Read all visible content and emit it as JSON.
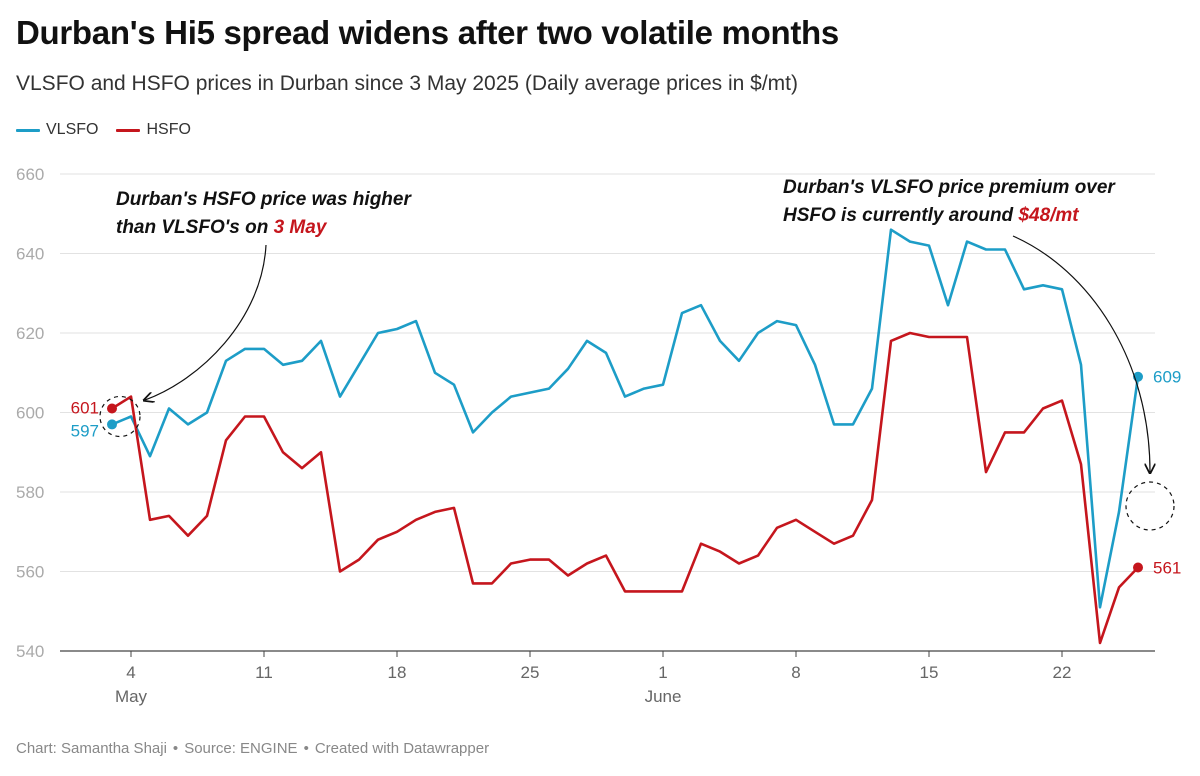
{
  "title": "Durban's Hi5 spread widens after two volatile months",
  "subtitle": "VLSFO and HSFO prices in Durban since 3 May 2025 (Daily average prices in $/mt)",
  "legend": [
    {
      "name": "VLSFO",
      "color": "#1d9dc7"
    },
    {
      "name": "HSFO",
      "color": "#c5161d"
    }
  ],
  "footer": {
    "chart_by": "Chart: Samantha Shaji",
    "source": "Source: ENGINE",
    "created": "Created with Datawrapper",
    "separator": "•"
  },
  "chart_data": {
    "type": "line",
    "title": "Durban's Hi5 spread widens after two volatile months",
    "ylim": [
      540,
      660
    ],
    "y_ticks": [
      540,
      560,
      580,
      600,
      620,
      640,
      660
    ],
    "x_ticks": [
      {
        "date": "2025-05-04",
        "label": "4",
        "sublabel": "May"
      },
      {
        "date": "2025-05-11",
        "label": "11",
        "sublabel": ""
      },
      {
        "date": "2025-05-18",
        "label": "18",
        "sublabel": ""
      },
      {
        "date": "2025-05-25",
        "label": "25",
        "sublabel": ""
      },
      {
        "date": "2025-06-01",
        "label": "1",
        "sublabel": "June"
      },
      {
        "date": "2025-06-08",
        "label": "8",
        "sublabel": ""
      },
      {
        "date": "2025-06-15",
        "label": "15",
        "sublabel": ""
      },
      {
        "date": "2025-06-22",
        "label": "22",
        "sublabel": ""
      }
    ],
    "grid": true,
    "legend_position": "top-left",
    "series": [
      {
        "name": "VLSFO",
        "color": "#1d9dc7",
        "start_label": "597",
        "end_label": "609",
        "points": [
          [
            "2025-05-03",
            597
          ],
          [
            "2025-05-04",
            599
          ],
          [
            "2025-05-05",
            589
          ],
          [
            "2025-05-06",
            601
          ],
          [
            "2025-05-07",
            597
          ],
          [
            "2025-05-08",
            600
          ],
          [
            "2025-05-09",
            613
          ],
          [
            "2025-05-10",
            616
          ],
          [
            "2025-05-11",
            616
          ],
          [
            "2025-05-12",
            612
          ],
          [
            "2025-05-13",
            613
          ],
          [
            "2025-05-14",
            618
          ],
          [
            "2025-05-15",
            604
          ],
          [
            "2025-05-16",
            612
          ],
          [
            "2025-05-17",
            620
          ],
          [
            "2025-05-18",
            621
          ],
          [
            "2025-05-19",
            623
          ],
          [
            "2025-05-20",
            610
          ],
          [
            "2025-05-21",
            607
          ],
          [
            "2025-05-22",
            595
          ],
          [
            "2025-05-23",
            600
          ],
          [
            "2025-05-24",
            604
          ],
          [
            "2025-05-25",
            605
          ],
          [
            "2025-05-26",
            606
          ],
          [
            "2025-05-27",
            611
          ],
          [
            "2025-05-28",
            618
          ],
          [
            "2025-05-29",
            615
          ],
          [
            "2025-05-30",
            604
          ],
          [
            "2025-05-31",
            606
          ],
          [
            "2025-06-01",
            607
          ],
          [
            "2025-06-02",
            625
          ],
          [
            "2025-06-03",
            627
          ],
          [
            "2025-06-04",
            618
          ],
          [
            "2025-06-05",
            613
          ],
          [
            "2025-06-06",
            620
          ],
          [
            "2025-06-07",
            623
          ],
          [
            "2025-06-08",
            622
          ],
          [
            "2025-06-09",
            612
          ],
          [
            "2025-06-10",
            597
          ],
          [
            "2025-06-11",
            597
          ],
          [
            "2025-06-12",
            606
          ],
          [
            "2025-06-13",
            646
          ],
          [
            "2025-06-14",
            643
          ],
          [
            "2025-06-15",
            642
          ],
          [
            "2025-06-16",
            627
          ],
          [
            "2025-06-17",
            643
          ],
          [
            "2025-06-18",
            641
          ],
          [
            "2025-06-19",
            641
          ],
          [
            "2025-06-20",
            631
          ],
          [
            "2025-06-21",
            632
          ],
          [
            "2025-06-22",
            631
          ],
          [
            "2025-06-23",
            612
          ],
          [
            "2025-06-24",
            551
          ],
          [
            "2025-06-25",
            575
          ],
          [
            "2025-06-26",
            609
          ]
        ]
      },
      {
        "name": "HSFO",
        "color": "#c5161d",
        "start_label": "601",
        "end_label": "561",
        "points": [
          [
            "2025-05-03",
            601
          ],
          [
            "2025-05-04",
            604
          ],
          [
            "2025-05-05",
            573
          ],
          [
            "2025-05-06",
            574
          ],
          [
            "2025-05-07",
            569
          ],
          [
            "2025-05-08",
            574
          ],
          [
            "2025-05-09",
            593
          ],
          [
            "2025-05-10",
            599
          ],
          [
            "2025-05-11",
            599
          ],
          [
            "2025-05-12",
            590
          ],
          [
            "2025-05-13",
            586
          ],
          [
            "2025-05-14",
            590
          ],
          [
            "2025-05-15",
            560
          ],
          [
            "2025-05-16",
            563
          ],
          [
            "2025-05-17",
            568
          ],
          [
            "2025-05-18",
            570
          ],
          [
            "2025-05-19",
            573
          ],
          [
            "2025-05-20",
            575
          ],
          [
            "2025-05-21",
            576
          ],
          [
            "2025-05-22",
            557
          ],
          [
            "2025-05-23",
            557
          ],
          [
            "2025-05-24",
            562
          ],
          [
            "2025-05-25",
            563
          ],
          [
            "2025-05-26",
            563
          ],
          [
            "2025-05-27",
            559
          ],
          [
            "2025-05-28",
            562
          ],
          [
            "2025-05-29",
            564
          ],
          [
            "2025-05-30",
            555
          ],
          [
            "2025-05-31",
            555
          ],
          [
            "2025-06-01",
            555
          ],
          [
            "2025-06-02",
            555
          ],
          [
            "2025-06-03",
            567
          ],
          [
            "2025-06-04",
            565
          ],
          [
            "2025-06-05",
            562
          ],
          [
            "2025-06-06",
            564
          ],
          [
            "2025-06-07",
            571
          ],
          [
            "2025-06-08",
            573
          ],
          [
            "2025-06-09",
            570
          ],
          [
            "2025-06-10",
            567
          ],
          [
            "2025-06-11",
            569
          ],
          [
            "2025-06-12",
            578
          ],
          [
            "2025-06-13",
            618
          ],
          [
            "2025-06-14",
            620
          ],
          [
            "2025-06-15",
            619
          ],
          [
            "2025-06-16",
            619
          ],
          [
            "2025-06-17",
            619
          ],
          [
            "2025-06-18",
            585
          ],
          [
            "2025-06-19",
            595
          ],
          [
            "2025-06-20",
            595
          ],
          [
            "2025-06-21",
            601
          ],
          [
            "2025-06-22",
            603
          ],
          [
            "2025-06-23",
            587
          ],
          [
            "2025-06-24",
            542
          ],
          [
            "2025-06-25",
            556
          ],
          [
            "2025-06-26",
            561
          ]
        ]
      }
    ],
    "annotations": [
      {
        "id": "left",
        "lines": [
          "Durban's HSFO price was higher",
          "than VLSFO's on "
        ],
        "highlight": "3 May",
        "highlight_color": "#c5161d"
      },
      {
        "id": "right",
        "lines": [
          "Durban's VLSFO price premium over",
          "HSFO is currently around "
        ],
        "highlight": "$48/mt",
        "highlight_color": "#c5161d"
      }
    ]
  }
}
